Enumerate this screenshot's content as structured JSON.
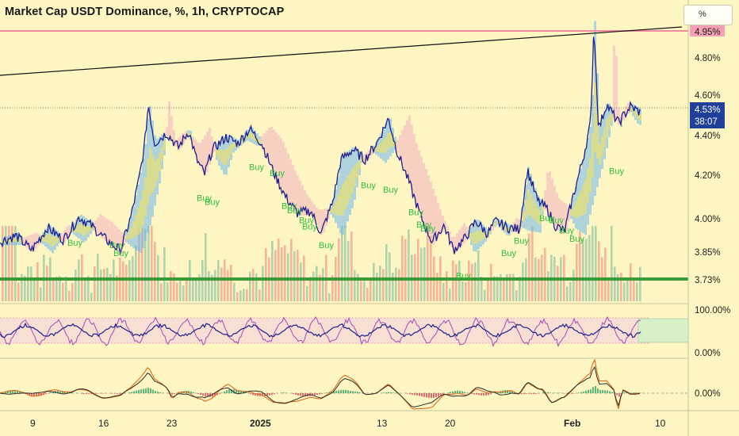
{
  "header": {
    "title": "Market Cap USDT Dominance, %, 1h, CRYPTOCAP",
    "unit_button": "%"
  },
  "colors": {
    "background": "#fdf6c3",
    "price_line": "#1e1e8c",
    "ribbon_blue": "#6fb6ee",
    "ribbon_pink": "#f5b8bf",
    "support_green": "#3a9a3a",
    "resistance_pink": "#f08aa0",
    "buy_signal": "#2fbf3f",
    "price_label_bg": "#1f3f99"
  },
  "chart_data": {
    "type": "line",
    "x_tick_labels": [
      "9",
      "16",
      "23",
      "2025",
      "13",
      "20",
      "Feb",
      "10"
    ],
    "y_tick_labels": [
      "4.80%",
      "4.60%",
      "4.40%",
      "4.20%",
      "4.00%",
      "3.85%"
    ],
    "ylim": [
      3.65,
      4.97
    ],
    "price_axis_tags": {
      "resistance": "4.95%",
      "last_price": "4.53%",
      "countdown": "38:07",
      "support": "3.73%"
    },
    "levels": {
      "resistance": 4.95,
      "last": 4.53,
      "support": 3.73
    },
    "price_points": [
      [
        0,
        3.9
      ],
      [
        20,
        3.93
      ],
      [
        40,
        3.86
      ],
      [
        60,
        3.97
      ],
      [
        80,
        3.91
      ],
      [
        100,
        4.02
      ],
      [
        115,
        3.98
      ],
      [
        128,
        3.93
      ],
      [
        140,
        3.89
      ],
      [
        152,
        3.86
      ],
      [
        165,
        4.02
      ],
      [
        175,
        4.2
      ],
      [
        182,
        4.36
      ],
      [
        187,
        4.57
      ],
      [
        195,
        4.38
      ],
      [
        210,
        4.43
      ],
      [
        225,
        4.36
      ],
      [
        238,
        4.44
      ],
      [
        248,
        4.3
      ],
      [
        258,
        4.23
      ],
      [
        268,
        4.35
      ],
      [
        285,
        4.41
      ],
      [
        300,
        4.38
      ],
      [
        315,
        4.45
      ],
      [
        330,
        4.38
      ],
      [
        345,
        4.24
      ],
      [
        360,
        4.12
      ],
      [
        375,
        4.04
      ],
      [
        392,
        4.05
      ],
      [
        405,
        3.94
      ],
      [
        420,
        4.1
      ],
      [
        430,
        4.3
      ],
      [
        445,
        4.35
      ],
      [
        460,
        4.3
      ],
      [
        475,
        4.38
      ],
      [
        490,
        4.5
      ],
      [
        500,
        4.35
      ],
      [
        515,
        4.2
      ],
      [
        530,
        4.03
      ],
      [
        545,
        3.9
      ],
      [
        560,
        3.98
      ],
      [
        572,
        3.86
      ],
      [
        585,
        3.91
      ],
      [
        600,
        4.0
      ],
      [
        615,
        3.94
      ],
      [
        625,
        4.0
      ],
      [
        640,
        3.97
      ],
      [
        655,
        3.96
      ],
      [
        665,
        4.25
      ],
      [
        678,
        4.1
      ],
      [
        690,
        4.06
      ],
      [
        700,
        3.98
      ],
      [
        712,
        3.95
      ],
      [
        720,
        4.08
      ],
      [
        735,
        4.3
      ],
      [
        745,
        4.48
      ],
      [
        749,
        4.96
      ],
      [
        755,
        4.45
      ],
      [
        765,
        4.57
      ],
      [
        780,
        4.48
      ],
      [
        795,
        4.56
      ],
      [
        808,
        4.53
      ]
    ],
    "buy_signals": [
      {
        "label": "Buy",
        "x": 85,
        "y": 3.88
      },
      {
        "label": "Buy",
        "x": 138,
        "y": 3.87
      },
      {
        "label": "Buy",
        "x": 143,
        "y": 3.83
      },
      {
        "label": "Buy",
        "x": 248,
        "y": 4.1
      },
      {
        "label": "Buy",
        "x": 258,
        "y": 4.08
      },
      {
        "label": "Buy",
        "x": 314,
        "y": 4.25
      },
      {
        "label": "Buy",
        "x": 340,
        "y": 4.22
      },
      {
        "label": "Buy",
        "x": 355,
        "y": 4.06
      },
      {
        "label": "Buy",
        "x": 362,
        "y": 4.04
      },
      {
        "label": "Buy",
        "x": 377,
        "y": 3.99
      },
      {
        "label": "Buy",
        "x": 381,
        "y": 3.96
      },
      {
        "label": "Buy",
        "x": 402,
        "y": 3.87
      },
      {
        "label": "Buy",
        "x": 455,
        "y": 4.16
      },
      {
        "label": "Buy",
        "x": 483,
        "y": 4.14
      },
      {
        "label": "Buy",
        "x": 515,
        "y": 4.03
      },
      {
        "label": "Buy",
        "x": 525,
        "y": 3.97
      },
      {
        "label": "Buy",
        "x": 530,
        "y": 3.95
      },
      {
        "label": "Buy",
        "x": 575,
        "y": 3.72
      },
      {
        "label": "Buy",
        "x": 632,
        "y": 3.83
      },
      {
        "label": "Buy",
        "x": 648,
        "y": 3.89
      },
      {
        "label": "Buy",
        "x": 680,
        "y": 4.0
      },
      {
        "label": "Buy",
        "x": 692,
        "y": 3.99
      },
      {
        "label": "Buy",
        "x": 705,
        "y": 3.94
      },
      {
        "label": "Buy",
        "x": 718,
        "y": 3.9
      },
      {
        "label": "Buy",
        "x": 768,
        "y": 4.23
      }
    ],
    "oscillator_1": {
      "tick_labels": [
        "100.00%",
        "0.00%"
      ],
      "range": [
        0,
        100
      ]
    },
    "oscillator_2": {
      "tick_labels": [
        "0.00%"
      ]
    }
  }
}
